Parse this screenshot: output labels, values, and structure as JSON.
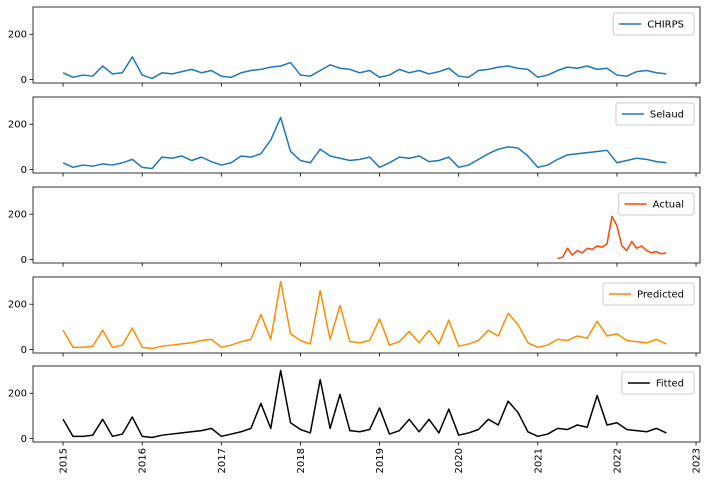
{
  "chart_data": [
    {
      "type": "line",
      "legend": "upper right",
      "x": [
        2015.0,
        2015.125,
        2015.25,
        2015.375,
        2015.5,
        2015.625,
        2015.75,
        2015.875,
        2016.0,
        2016.125,
        2016.25,
        2016.375,
        2016.5,
        2016.625,
        2016.75,
        2016.875,
        2017.0,
        2017.125,
        2017.25,
        2017.375,
        2017.5,
        2017.625,
        2017.75,
        2017.875,
        2018.0,
        2018.125,
        2018.25,
        2018.375,
        2018.5,
        2018.625,
        2018.75,
        2018.875,
        2019.0,
        2019.125,
        2019.25,
        2019.375,
        2019.5,
        2019.625,
        2019.75,
        2019.875,
        2020.0,
        2020.125,
        2020.25,
        2020.375,
        2020.5,
        2020.625,
        2020.75,
        2020.875,
        2021.0,
        2021.125,
        2021.25,
        2021.375,
        2021.5,
        2021.625,
        2021.75,
        2021.875,
        2022.0,
        2022.125,
        2022.25,
        2022.375,
        2022.5,
        2022.625
      ],
      "series": [
        {
          "name": "CHIRPS",
          "color": "#1f77b4",
          "values": [
            30,
            10,
            20,
            15,
            60,
            25,
            30,
            100,
            20,
            5,
            30,
            25,
            35,
            45,
            30,
            40,
            15,
            10,
            30,
            40,
            45,
            55,
            60,
            75,
            20,
            15,
            40,
            65,
            50,
            45,
            30,
            40,
            10,
            20,
            45,
            30,
            40,
            25,
            35,
            50,
            15,
            10,
            40,
            45,
            55,
            60,
            50,
            45,
            10,
            20,
            40,
            55,
            50,
            60,
            45,
            50,
            20,
            15,
            35,
            40,
            30,
            25
          ]
        }
      ],
      "xlim": [
        2014.62,
        2023.05
      ],
      "xticks": [
        2015,
        2016,
        2017,
        2018,
        2019,
        2020,
        2021,
        2022,
        2023
      ],
      "ylim": [
        -15,
        320
      ],
      "yticks": [
        0,
        200
      ]
    },
    {
      "type": "line",
      "legend": "upper right",
      "x": [
        2015.0,
        2015.125,
        2015.25,
        2015.375,
        2015.5,
        2015.625,
        2015.75,
        2015.875,
        2016.0,
        2016.125,
        2016.25,
        2016.375,
        2016.5,
        2016.625,
        2016.75,
        2016.875,
        2017.0,
        2017.125,
        2017.25,
        2017.375,
        2017.5,
        2017.625,
        2017.75,
        2017.875,
        2018.0,
        2018.125,
        2018.25,
        2018.375,
        2018.5,
        2018.625,
        2018.75,
        2018.875,
        2019.0,
        2019.125,
        2019.25,
        2019.375,
        2019.5,
        2019.625,
        2019.75,
        2019.875,
        2020.0,
        2020.125,
        2020.25,
        2020.375,
        2020.5,
        2020.625,
        2020.75,
        2020.875,
        2021.0,
        2021.125,
        2021.25,
        2021.375,
        2021.5,
        2021.625,
        2021.75,
        2021.875,
        2022.0,
        2022.125,
        2022.25,
        2022.375,
        2022.5,
        2022.625
      ],
      "series": [
        {
          "name": "Selaud",
          "color": "#1f77b4",
          "values": [
            30,
            10,
            20,
            15,
            25,
            20,
            30,
            45,
            10,
            5,
            55,
            50,
            60,
            40,
            55,
            35,
            20,
            30,
            60,
            55,
            70,
            130,
            230,
            80,
            40,
            30,
            90,
            60,
            50,
            40,
            45,
            55,
            10,
            30,
            55,
            50,
            60,
            35,
            40,
            55,
            10,
            20,
            45,
            70,
            90,
            100,
            95,
            60,
            10,
            20,
            45,
            65,
            70,
            75,
            80,
            85,
            30,
            40,
            50,
            45,
            35,
            30
          ]
        }
      ],
      "xlim": [
        2014.62,
        2023.05
      ],
      "xticks": [
        2015,
        2016,
        2017,
        2018,
        2019,
        2020,
        2021,
        2022,
        2023
      ],
      "ylim": [
        -15,
        320
      ],
      "yticks": [
        0,
        200
      ]
    },
    {
      "type": "line",
      "legend": "upper right",
      "x": [
        2021.25,
        2021.3125,
        2021.375,
        2021.4375,
        2021.5,
        2021.5625,
        2021.625,
        2021.6875,
        2021.75,
        2021.8125,
        2021.875,
        2021.9375,
        2022.0,
        2022.0625,
        2022.125,
        2022.1875,
        2022.25,
        2022.3125,
        2022.375,
        2022.4375,
        2022.5,
        2022.5625,
        2022.625
      ],
      "series": [
        {
          "name": "Actual",
          "color": "#ff4500",
          "values": [
            5,
            10,
            50,
            20,
            40,
            30,
            50,
            45,
            60,
            55,
            70,
            190,
            150,
            60,
            40,
            80,
            50,
            60,
            40,
            30,
            35,
            25,
            30
          ]
        }
      ],
      "xlim": [
        2014.62,
        2023.05
      ],
      "xticks": [
        2015,
        2016,
        2017,
        2018,
        2019,
        2020,
        2021,
        2022,
        2023
      ],
      "ylim": [
        -15,
        320
      ],
      "yticks": [
        0,
        200
      ]
    },
    {
      "type": "line",
      "legend": "upper right",
      "x": [
        2015.0,
        2015.125,
        2015.25,
        2015.375,
        2015.5,
        2015.625,
        2015.75,
        2015.875,
        2016.0,
        2016.125,
        2016.25,
        2016.375,
        2016.5,
        2016.625,
        2016.75,
        2016.875,
        2017.0,
        2017.125,
        2017.25,
        2017.375,
        2017.5,
        2017.625,
        2017.75,
        2017.875,
        2018.0,
        2018.125,
        2018.25,
        2018.375,
        2018.5,
        2018.625,
        2018.75,
        2018.875,
        2019.0,
        2019.125,
        2019.25,
        2019.375,
        2019.5,
        2019.625,
        2019.75,
        2019.875,
        2020.0,
        2020.125,
        2020.25,
        2020.375,
        2020.5,
        2020.625,
        2020.75,
        2020.875,
        2021.0,
        2021.125,
        2021.25,
        2021.375,
        2021.5,
        2021.625,
        2021.75,
        2021.875,
        2022.0,
        2022.125,
        2022.25,
        2022.375,
        2022.5,
        2022.625
      ],
      "series": [
        {
          "name": "Predicted",
          "color": "#ff8c00",
          "values": [
            85,
            10,
            10,
            15,
            85,
            10,
            20,
            95,
            10,
            5,
            15,
            20,
            25,
            30,
            40,
            45,
            10,
            20,
            35,
            45,
            155,
            45,
            300,
            70,
            40,
            25,
            260,
            45,
            195,
            35,
            30,
            40,
            135,
            20,
            35,
            80,
            30,
            85,
            25,
            130,
            15,
            25,
            40,
            85,
            60,
            160,
            110,
            30,
            10,
            20,
            45,
            40,
            60,
            50,
            125,
            60,
            70,
            40,
            35,
            30,
            45,
            25
          ]
        }
      ],
      "xlim": [
        2014.62,
        2023.05
      ],
      "xticks": [
        2015,
        2016,
        2017,
        2018,
        2019,
        2020,
        2021,
        2022,
        2023
      ],
      "ylim": [
        -15,
        320
      ],
      "yticks": [
        0,
        200
      ]
    },
    {
      "type": "line",
      "legend": "upper right",
      "xtick_labels": true,
      "x": [
        2015.0,
        2015.125,
        2015.25,
        2015.375,
        2015.5,
        2015.625,
        2015.75,
        2015.875,
        2016.0,
        2016.125,
        2016.25,
        2016.375,
        2016.5,
        2016.625,
        2016.75,
        2016.875,
        2017.0,
        2017.125,
        2017.25,
        2017.375,
        2017.5,
        2017.625,
        2017.75,
        2017.875,
        2018.0,
        2018.125,
        2018.25,
        2018.375,
        2018.5,
        2018.625,
        2018.75,
        2018.875,
        2019.0,
        2019.125,
        2019.25,
        2019.375,
        2019.5,
        2019.625,
        2019.75,
        2019.875,
        2020.0,
        2020.125,
        2020.25,
        2020.375,
        2020.5,
        2020.625,
        2020.75,
        2020.875,
        2021.0,
        2021.125,
        2021.25,
        2021.375,
        2021.5,
        2021.625,
        2021.75,
        2021.875,
        2022.0,
        2022.125,
        2022.25,
        2022.375,
        2022.5,
        2022.625
      ],
      "series": [
        {
          "name": "Fitted",
          "color": "#000000",
          "values": [
            85,
            10,
            10,
            15,
            85,
            10,
            20,
            95,
            10,
            5,
            15,
            20,
            25,
            30,
            35,
            45,
            10,
            20,
            30,
            45,
            155,
            45,
            300,
            70,
            40,
            25,
            260,
            45,
            195,
            35,
            30,
            40,
            135,
            20,
            35,
            85,
            30,
            85,
            25,
            130,
            15,
            25,
            40,
            85,
            60,
            165,
            115,
            30,
            10,
            20,
            45,
            40,
            60,
            50,
            190,
            60,
            70,
            40,
            35,
            30,
            45,
            25
          ]
        }
      ],
      "xlim": [
        2014.62,
        2023.05
      ],
      "xticks": [
        2015,
        2016,
        2017,
        2018,
        2019,
        2020,
        2021,
        2022,
        2023
      ],
      "ylim": [
        -15,
        320
      ],
      "yticks": [
        0,
        200
      ]
    }
  ]
}
